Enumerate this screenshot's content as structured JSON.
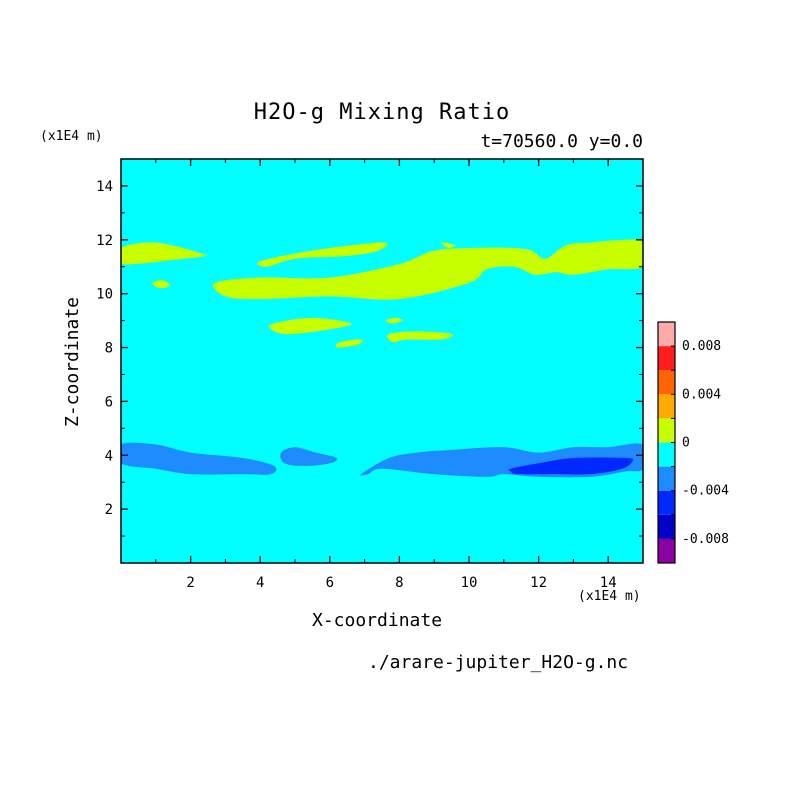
{
  "chart_data": {
    "type": "heatmap",
    "title": "H2O-g Mixing Ratio",
    "subtitle": "t=70560.0 y=0.0",
    "xlabel": "X-coordinate",
    "ylabel": "Z-coordinate",
    "x_unit": "(x1E4 m)",
    "y_unit": "(x1E4 m)",
    "xlim": [
      0,
      15
    ],
    "ylim": [
      0,
      15
    ],
    "x_ticks": [
      2,
      4,
      6,
      8,
      10,
      12,
      14
    ],
    "y_ticks": [
      2,
      4,
      6,
      8,
      10,
      12,
      14
    ],
    "x_tick_labels": [
      "2",
      "4",
      "6",
      "8",
      "10",
      "12",
      "14"
    ],
    "y_tick_labels": [
      "2",
      "4",
      "6",
      "8",
      "10",
      "12",
      "14"
    ],
    "colorbar": {
      "levels": [
        -0.01,
        -0.008,
        -0.006,
        -0.004,
        -0.002,
        0,
        0.002,
        0.004,
        0.006,
        0.008,
        0.01
      ],
      "colors": [
        "#8b00a0",
        "#0000c8",
        "#0028ff",
        "#1e8cff",
        "#00ffff",
        "#c8ff00",
        "#ffaa00",
        "#ff6400",
        "#ff1e1e",
        "#ffaaaa"
      ],
      "tick_values": [
        0.008,
        0.004,
        0,
        -0.004,
        -0.008
      ],
      "tick_labels": [
        "0.008",
        "0.004",
        "0",
        "-0.004",
        "-0.008"
      ]
    },
    "background_level": "-0.002 to 0",
    "regions": [
      {
        "level": "0 to 0.002",
        "color": "#c8ff00",
        "outline": [
          [
            0,
            11.7
          ],
          [
            1,
            11.9
          ],
          [
            2.3,
            11.5
          ],
          [
            2.4,
            11.4
          ],
          [
            1.8,
            11.3
          ],
          [
            0,
            11.1
          ]
        ]
      },
      {
        "level": "0 to 0.002",
        "color": "#c8ff00",
        "outline": [
          [
            4,
            11.2
          ],
          [
            5.5,
            11.6
          ],
          [
            7.5,
            11.9
          ],
          [
            7.4,
            11.6
          ],
          [
            6.5,
            11.4
          ],
          [
            5,
            11.3
          ],
          [
            4.2,
            11.0
          ]
        ]
      },
      {
        "level": "0 to 0.002",
        "color": "#c8ff00",
        "outline": [
          [
            9.2,
            11.9
          ],
          [
            9.6,
            11.8
          ],
          [
            9.4,
            11.7
          ]
        ]
      },
      {
        "level": "0 to 0.002",
        "color": "#c8ff00",
        "outline": [
          [
            2.7,
            10.4
          ],
          [
            4,
            10.6
          ],
          [
            6,
            10.6
          ],
          [
            8,
            11.1
          ],
          [
            9,
            11.6
          ],
          [
            10.2,
            11.7
          ],
          [
            11.2,
            11.7
          ],
          [
            11.8,
            11.6
          ],
          [
            12.2,
            11.3
          ],
          [
            12.8,
            11.8
          ],
          [
            13.5,
            11.9
          ],
          [
            14.5,
            12.0
          ],
          [
            15,
            11.9
          ],
          [
            15,
            11.0
          ],
          [
            14,
            10.9
          ],
          [
            13,
            10.7
          ],
          [
            12.5,
            10.8
          ],
          [
            11.9,
            10.7
          ],
          [
            11.3,
            11.0
          ],
          [
            10.5,
            10.9
          ],
          [
            10,
            10.4
          ],
          [
            8,
            9.8
          ],
          [
            6,
            9.9
          ],
          [
            4,
            9.8
          ],
          [
            3,
            9.9
          ]
        ]
      },
      {
        "level": "0 to 0.002",
        "color": "#c8ff00",
        "outline": [
          [
            0.9,
            10.4
          ],
          [
            1.2,
            10.5
          ],
          [
            1.4,
            10.3
          ],
          [
            1.1,
            10.2
          ]
        ]
      },
      {
        "level": "0 to 0.002",
        "color": "#c8ff00",
        "outline": [
          [
            4.4,
            8.9
          ],
          [
            5.5,
            9.1
          ],
          [
            6.6,
            8.9
          ],
          [
            6.1,
            8.7
          ],
          [
            4.8,
            8.5
          ],
          [
            4.3,
            8.7
          ]
        ]
      },
      {
        "level": "0 to 0.002",
        "color": "#c8ff00",
        "outline": [
          [
            7.6,
            9.0
          ],
          [
            7.9,
            9.1
          ],
          [
            8.1,
            9.0
          ],
          [
            7.8,
            8.9
          ]
        ]
      },
      {
        "level": "0 to 0.002",
        "color": "#c8ff00",
        "outline": [
          [
            6.3,
            8.2
          ],
          [
            6.9,
            8.3
          ],
          [
            6.8,
            8.1
          ],
          [
            6.2,
            8.0
          ]
        ]
      },
      {
        "level": "0 to 0.002",
        "color": "#c8ff00",
        "outline": [
          [
            7.7,
            8.5
          ],
          [
            8.5,
            8.6
          ],
          [
            9.5,
            8.5
          ],
          [
            9.2,
            8.3
          ],
          [
            8.2,
            8.3
          ],
          [
            7.8,
            8.2
          ]
        ]
      },
      {
        "level": "-0.004 to -0.002",
        "color": "#1e8cff",
        "outline": [
          [
            0,
            4.4
          ],
          [
            1,
            4.4
          ],
          [
            2,
            4.1
          ],
          [
            3.5,
            3.9
          ],
          [
            4.4,
            3.6
          ],
          [
            4.3,
            3.3
          ],
          [
            3.5,
            3.3
          ],
          [
            2,
            3.3
          ],
          [
            1,
            3.5
          ],
          [
            0,
            3.7
          ]
        ]
      },
      {
        "level": "-0.004 to -0.002",
        "color": "#1e8cff",
        "outline": [
          [
            4.6,
            4.1
          ],
          [
            5,
            4.3
          ],
          [
            5.6,
            4.1
          ],
          [
            6.2,
            3.9
          ],
          [
            6.0,
            3.7
          ],
          [
            5.3,
            3.6
          ],
          [
            4.7,
            3.7
          ]
        ]
      },
      {
        "level": "-0.004 to -0.002",
        "color": "#1e8cff",
        "outline": [
          [
            6.9,
            3.3
          ],
          [
            7.7,
            3.9
          ],
          [
            8.5,
            4.1
          ],
          [
            9.5,
            4.2
          ],
          [
            11,
            4.3
          ],
          [
            12,
            4.1
          ],
          [
            13,
            4.3
          ],
          [
            14,
            4.3
          ],
          [
            15,
            4.4
          ],
          [
            15,
            3.5
          ],
          [
            14.5,
            3.4
          ],
          [
            13.5,
            3.2
          ],
          [
            12,
            3.2
          ],
          [
            11,
            3.3
          ],
          [
            10.5,
            3.2
          ],
          [
            9,
            3.3
          ],
          [
            7.5,
            3.5
          ],
          [
            7.1,
            3.3
          ]
        ]
      },
      {
        "level": "-0.006 to -0.004",
        "color": "#0028ff",
        "outline": [
          [
            11.2,
            3.5
          ],
          [
            12,
            3.7
          ],
          [
            13,
            3.9
          ],
          [
            14.5,
            3.9
          ],
          [
            14.7,
            3.8
          ],
          [
            14.4,
            3.5
          ],
          [
            13.5,
            3.3
          ],
          [
            12.5,
            3.3
          ],
          [
            11.4,
            3.3
          ],
          [
            11.2,
            3.4
          ]
        ]
      }
    ]
  },
  "footer_text": "./arare-jupiter_H2O-g.nc"
}
